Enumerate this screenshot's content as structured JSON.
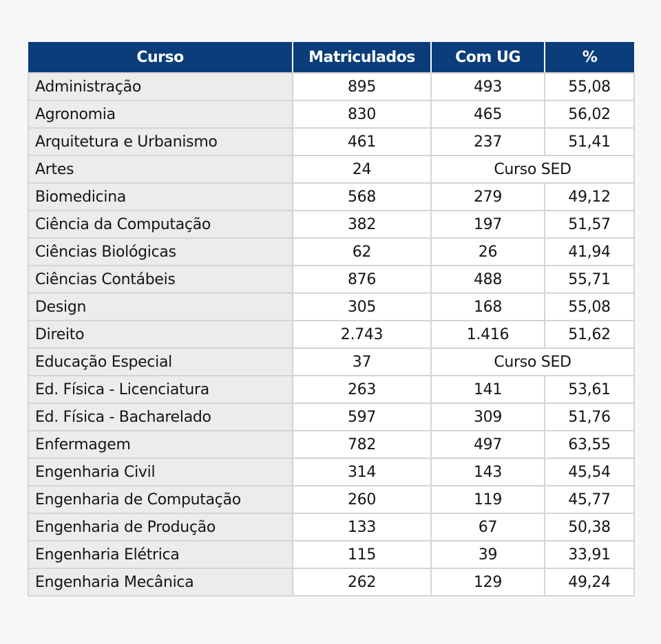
{
  "table": {
    "headers": [
      "Curso",
      "Matriculados",
      "Com UG",
      "%"
    ],
    "rows": [
      {
        "curso": "Administração",
        "matriculados": "895",
        "com_ug": "493",
        "pct": "55,08"
      },
      {
        "curso": "Agronomia",
        "matriculados": "830",
        "com_ug": "465",
        "pct": "56,02"
      },
      {
        "curso": "Arquitetura e Urbanismo",
        "matriculados": "461",
        "com_ug": "237",
        "pct": "51,41"
      },
      {
        "curso": "Artes",
        "matriculados": "24",
        "note": "Curso SED"
      },
      {
        "curso": "Biomedicina",
        "matriculados": "568",
        "com_ug": "279",
        "pct": "49,12"
      },
      {
        "curso": "Ciência da Computação",
        "matriculados": "382",
        "com_ug": "197",
        "pct": "51,57"
      },
      {
        "curso": "Ciências Biológicas",
        "matriculados": "62",
        "com_ug": "26",
        "pct": "41,94"
      },
      {
        "curso": "Ciências Contábeis",
        "matriculados": "876",
        "com_ug": "488",
        "pct": "55,71"
      },
      {
        "curso": "Design",
        "matriculados": "305",
        "com_ug": "168",
        "pct": "55,08"
      },
      {
        "curso": "Direito",
        "matriculados": "2.743",
        "com_ug": "1.416",
        "pct": "51,62"
      },
      {
        "curso": "Educação Especial",
        "matriculados": "37",
        "note": "Curso SED"
      },
      {
        "curso": "Ed. Física - Licenciatura",
        "matriculados": "263",
        "com_ug": "141",
        "pct": "53,61"
      },
      {
        "curso": "Ed. Física - Bacharelado",
        "matriculados": "597",
        "com_ug": "309",
        "pct": "51,76"
      },
      {
        "curso": "Enfermagem",
        "matriculados": "782",
        "com_ug": "497",
        "pct": "63,55"
      },
      {
        "curso": "Engenharia Civil",
        "matriculados": "314",
        "com_ug": "143",
        "pct": "45,54"
      },
      {
        "curso": "Engenharia de Computação",
        "matriculados": "260",
        "com_ug": "119",
        "pct": "45,77"
      },
      {
        "curso": "Engenharia de Produção",
        "matriculados": "133",
        "com_ug": "67",
        "pct": "50,38"
      },
      {
        "curso": "Engenharia Elétrica",
        "matriculados": "115",
        "com_ug": "39",
        "pct": "33,91"
      },
      {
        "curso": "Engenharia Mecânica",
        "matriculados": "262",
        "com_ug": "129",
        "pct": "49,24"
      }
    ]
  }
}
